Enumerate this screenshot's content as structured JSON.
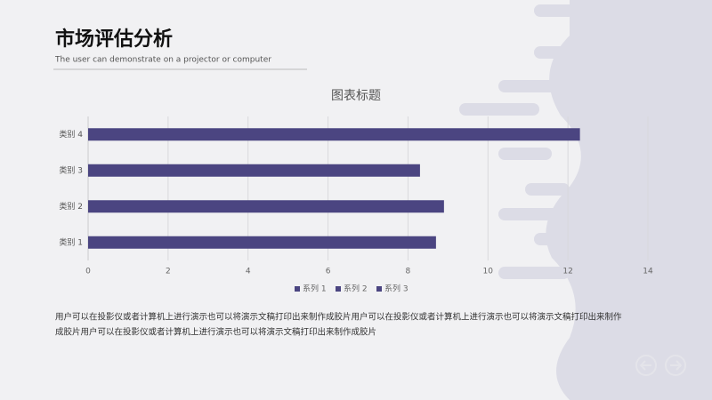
{
  "header": {
    "title": "市场评估分析",
    "subtitle": "The user can demonstrate on a projector or computer"
  },
  "body": {
    "text_lines": [
      "用户可以在投影仪或者计算机上进行演示也可以将演示文稿打印出来制作成胶片用户可以在投影仪或者计算机上进行演示也可以将演示文稿打印出来制作",
      "成胶片用户可以在投影仪或者计算机上进行演示也可以将演示文稿打印出来制作成胶片"
    ]
  },
  "chart_data": {
    "type": "barh",
    "title": "图表标题",
    "categories": [
      "类别 1",
      "类别 2",
      "类别 3",
      "类别 4"
    ],
    "series": [
      {
        "name": "系列 1",
        "color": "#4b4581",
        "values": [
          8.7,
          8.9,
          8.3,
          12.3
        ]
      },
      {
        "name": "系列 2",
        "color": "#4b4581",
        "values": [
          null,
          null,
          null,
          null
        ]
      },
      {
        "name": "系列 3",
        "color": "#4b4581",
        "values": [
          null,
          null,
          null,
          null
        ]
      }
    ],
    "xlim": [
      0,
      14
    ],
    "xticks": [
      0,
      2,
      4,
      6,
      8,
      10,
      12,
      14
    ],
    "grid": true,
    "legend": "bottom"
  }
}
